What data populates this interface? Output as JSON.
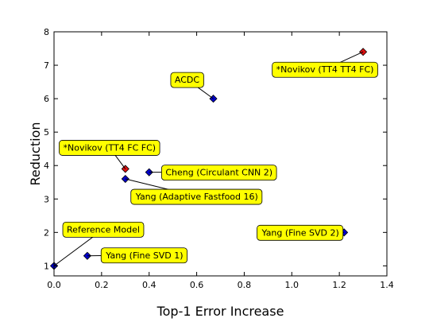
{
  "chart_data": {
    "type": "scatter",
    "title": "",
    "xlabel": "Top-1 Error Increase",
    "ylabel": "Reduction",
    "xlim": [
      0.0,
      1.4
    ],
    "ylim": [
      0.7,
      8.0
    ],
    "xticks": [
      "0.0",
      "0.2",
      "0.4",
      "0.6",
      "0.8",
      "1.0",
      "1.2",
      "1.4"
    ],
    "yticks": [
      "1",
      "2",
      "3",
      "4",
      "5",
      "6",
      "7",
      "8"
    ],
    "grid": false,
    "marker": "diamond",
    "label_box_color": "#ffff00",
    "points": [
      {
        "label": "Reference Model",
        "x": 0.0,
        "y": 1.0,
        "color": "#0000cc"
      },
      {
        "label": "Yang (Fine SVD 1)",
        "x": 0.14,
        "y": 1.3,
        "color": "#0000cc"
      },
      {
        "label": "Yang (Adaptive Fastfood 16)",
        "x": 0.3,
        "y": 3.6,
        "color": "#0000cc"
      },
      {
        "label": "*Novikov (TT4 FC FC)",
        "x": 0.3,
        "y": 3.9,
        "color": "#dd1111"
      },
      {
        "label": "Cheng (Circulant CNN 2)",
        "x": 0.4,
        "y": 3.8,
        "color": "#0000cc"
      },
      {
        "label": "ACDC",
        "x": 0.67,
        "y": 6.0,
        "color": "#0000cc"
      },
      {
        "label": "Yang (Fine SVD 2)",
        "x": 1.22,
        "y": 2.0,
        "color": "#0000cc"
      },
      {
        "label": "*Novikov (TT4 TT4 FC)",
        "x": 1.3,
        "y": 7.4,
        "color": "#dd1111"
      }
    ]
  }
}
